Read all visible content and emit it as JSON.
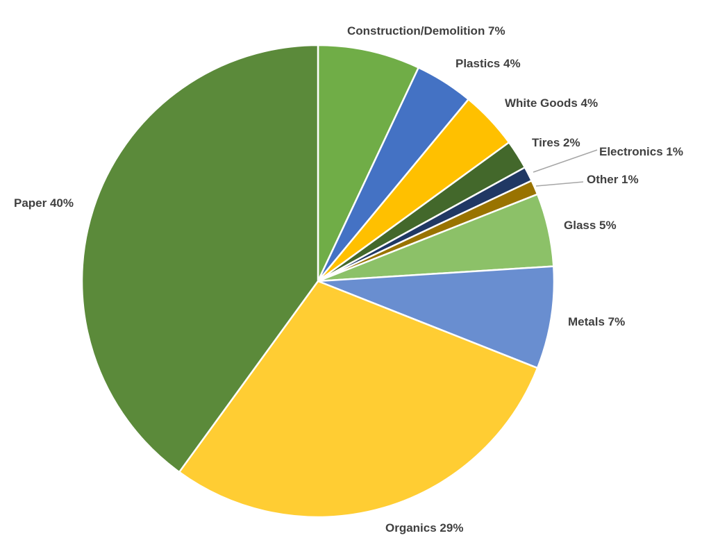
{
  "chart_data": {
    "type": "pie",
    "title": "",
    "start_angle_deg": 0,
    "direction": "clockwise",
    "legend": "none",
    "slices": [
      {
        "label": "Construction/Demolition",
        "value": 7,
        "display": "Construction/Demolition 7%",
        "color": "#70ad47"
      },
      {
        "label": "Plastics",
        "value": 4,
        "display": "Plastics 4%",
        "color": "#4472c4"
      },
      {
        "label": "White Goods",
        "value": 4,
        "display": "White Goods 4%",
        "color": "#ffc000"
      },
      {
        "label": "Tires",
        "value": 2,
        "display": "Tires 2%",
        "color": "#43682b"
      },
      {
        "label": "Electronics",
        "value": 1,
        "display": "Electronics 1%",
        "color": "#203864"
      },
      {
        "label": "Other",
        "value": 1,
        "display": "Other 1%",
        "color": "#997300"
      },
      {
        "label": "Glass",
        "value": 5,
        "display": "Glass 5%",
        "color": "#8cc168"
      },
      {
        "label": "Metals",
        "value": 7,
        "display": "Metals 7%",
        "color": "#698ed0"
      },
      {
        "label": "Organics",
        "value": 29,
        "display": "Organics 29%",
        "color": "#ffcd33"
      },
      {
        "label": "Paper",
        "value": 40,
        "display": "Paper 40%",
        "color": "#5b8a3a"
      }
    ]
  }
}
